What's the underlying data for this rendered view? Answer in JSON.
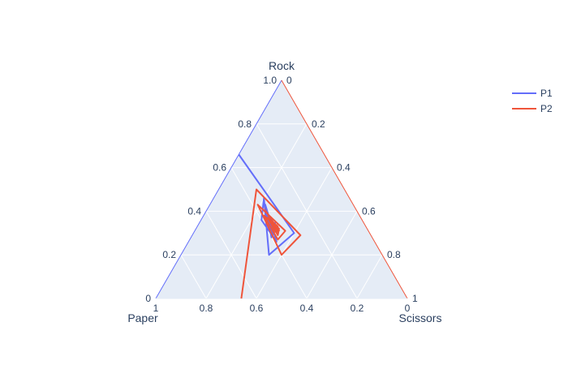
{
  "chart_data": {
    "type": "ternary",
    "axes": {
      "a": {
        "title": "Rock"
      },
      "b": {
        "title": "Paper"
      },
      "c": {
        "title": "Scissors"
      }
    },
    "axis_ticks": {
      "a": [
        "0",
        "0.2",
        "0.4",
        "0.6",
        "0.8",
        "1.0"
      ],
      "b": [
        "0",
        "0.2",
        "0.4",
        "0.6",
        "0.8",
        "1"
      ],
      "c": [
        "0",
        "0.2",
        "0.4",
        "0.6",
        "0.8",
        "1"
      ]
    },
    "background_color": "#e5ecf6",
    "grid": true,
    "legend": {
      "position": "top-right"
    },
    "series": [
      {
        "name": "P1",
        "color": "#636efa",
        "points": [
          [
            0.66,
            0.34,
            0.0
          ],
          [
            0.3,
            0.3,
            0.4
          ],
          [
            0.2,
            0.45,
            0.35
          ],
          [
            0.46,
            0.34,
            0.2
          ],
          [
            0.36,
            0.4,
            0.24
          ],
          [
            0.26,
            0.39,
            0.35
          ],
          [
            0.43,
            0.35,
            0.22
          ],
          [
            0.33,
            0.38,
            0.29
          ],
          [
            0.28,
            0.4,
            0.32
          ],
          [
            0.41,
            0.36,
            0.23
          ],
          [
            0.34,
            0.37,
            0.29
          ],
          [
            0.29,
            0.39,
            0.32
          ],
          [
            0.39,
            0.36,
            0.25
          ],
          [
            0.33,
            0.37,
            0.3
          ],
          [
            0.3,
            0.38,
            0.32
          ],
          [
            0.37,
            0.36,
            0.27
          ],
          [
            0.34,
            0.36,
            0.3
          ],
          [
            0.32,
            0.37,
            0.31
          ],
          [
            0.35,
            0.35,
            0.3
          ]
        ]
      },
      {
        "name": "P2",
        "color": "#ef553b",
        "points": [
          [
            0.0,
            0.66,
            0.34
          ],
          [
            0.5,
            0.35,
            0.15
          ],
          [
            0.29,
            0.28,
            0.43
          ],
          [
            0.2,
            0.4,
            0.4
          ],
          [
            0.43,
            0.38,
            0.19
          ],
          [
            0.31,
            0.33,
            0.36
          ],
          [
            0.27,
            0.38,
            0.35
          ],
          [
            0.38,
            0.38,
            0.24
          ],
          [
            0.32,
            0.35,
            0.33
          ],
          [
            0.29,
            0.37,
            0.34
          ],
          [
            0.37,
            0.37,
            0.26
          ],
          [
            0.33,
            0.35,
            0.32
          ],
          [
            0.3,
            0.37,
            0.33
          ],
          [
            0.35,
            0.37,
            0.28
          ],
          [
            0.33,
            0.36,
            0.31
          ],
          [
            0.31,
            0.37,
            0.32
          ],
          [
            0.34,
            0.36,
            0.3
          ],
          [
            0.33,
            0.35,
            0.32
          ],
          [
            0.32,
            0.36,
            0.32
          ],
          [
            0.34,
            0.35,
            0.31
          ]
        ]
      }
    ]
  }
}
